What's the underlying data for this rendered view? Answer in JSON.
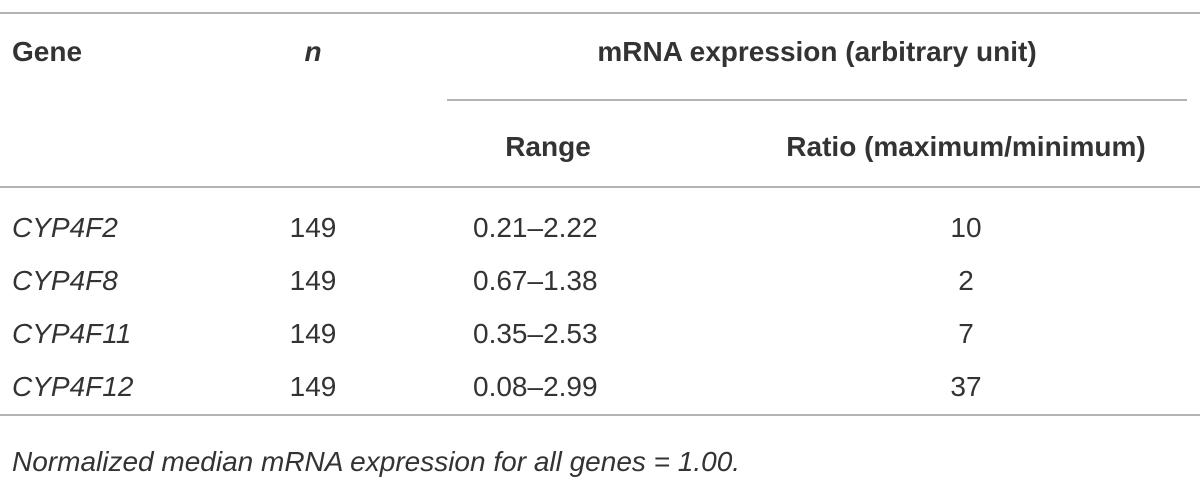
{
  "table": {
    "header": {
      "gene": "Gene",
      "n": "n",
      "group": "mRNA expression (arbitrary unit)",
      "range": "Range",
      "ratio": "Ratio (maximum/minimum)"
    },
    "rows": [
      [
        "CYP4F2",
        149,
        "0.21–2.22",
        10
      ],
      [
        "CYP4F8",
        149,
        "0.67–1.38",
        2
      ],
      [
        "CYP4F11",
        149,
        "0.35–2.53",
        7
      ],
      [
        "CYP4F12",
        149,
        "0.08–2.99",
        37
      ]
    ],
    "footnote": "Normalized median mRNA expression for all genes = 1.00."
  }
}
